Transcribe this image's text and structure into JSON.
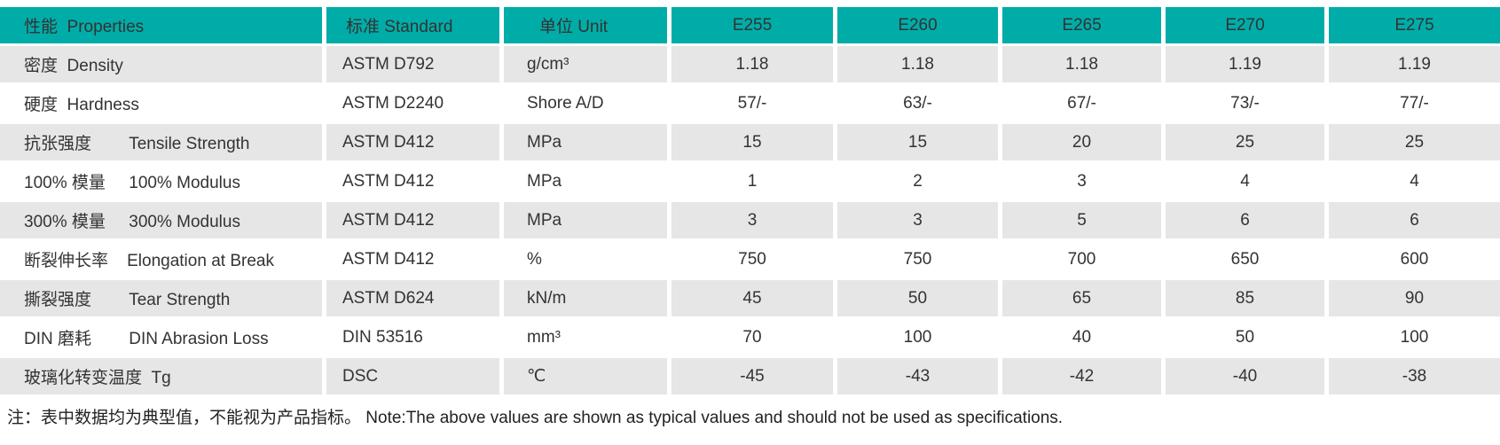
{
  "colors": {
    "header_bg": "#00ACA8",
    "row_alt_bg": "#E6E6E6",
    "header_text": "#333333",
    "body_text": "#333333"
  },
  "table": {
    "header": {
      "properties": "性能  Properties",
      "standard": "标准 Standard",
      "unit": "单位 Unit",
      "products": [
        "E255",
        "E260",
        "E265",
        "E270",
        "E275"
      ]
    },
    "rows": [
      {
        "property": "密度  Density",
        "standard": "ASTM D792",
        "unit": "g/cm³",
        "values": [
          "1.18",
          "1.18",
          "1.18",
          "1.19",
          "1.19"
        ]
      },
      {
        "property": "硬度  Hardness",
        "standard": "ASTM D2240",
        "unit": "Shore A/D",
        "values": [
          "57/-",
          "63/-",
          "67/-",
          "73/-",
          "77/-"
        ]
      },
      {
        "property": "抗张强度        Tensile Strength",
        "standard": "ASTM D412",
        "unit": "MPa",
        "values": [
          "15",
          "15",
          "20",
          "25",
          "25"
        ]
      },
      {
        "property": "100% 模量     100% Modulus",
        "standard": "ASTM D412",
        "unit": "MPa",
        "values": [
          "1",
          "2",
          "3",
          "4",
          "4"
        ]
      },
      {
        "property": "300% 模量     300% Modulus",
        "standard": "ASTM D412",
        "unit": "MPa",
        "values": [
          "3",
          "3",
          "5",
          "6",
          "6"
        ]
      },
      {
        "property": "断裂伸长率    Elongation at Break",
        "standard": "ASTM D412",
        "unit": "%",
        "values": [
          "750",
          "750",
          "700",
          "650",
          "600"
        ]
      },
      {
        "property": "撕裂强度        Tear Strength",
        "standard": "ASTM D624",
        "unit": "kN/m",
        "values": [
          "45",
          "50",
          "65",
          "85",
          "90"
        ]
      },
      {
        "property": "DIN 磨耗        DIN Abrasion Loss",
        "standard": "DIN 53516",
        "unit": "mm³",
        "values": [
          "70",
          "100",
          "40",
          "50",
          "100"
        ]
      },
      {
        "property": "玻璃化转变温度  Tg",
        "standard": "DSC",
        "unit": "℃",
        "values": [
          "-45",
          "-43",
          "-42",
          "-40",
          "-38"
        ]
      }
    ],
    "note": "注：表中数据均为典型值，不能视为产品指标。 Note:The above values are shown as typical values and should not be used as specifications."
  }
}
